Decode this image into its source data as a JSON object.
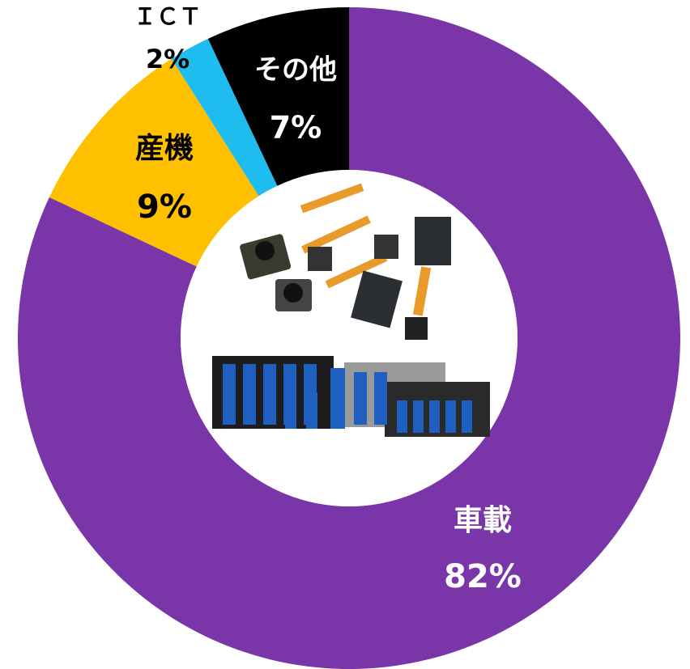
{
  "chart_data": {
    "type": "donut",
    "categories": [
      "車載",
      "産機",
      "ＩＣＴ",
      "その他"
    ],
    "values": [
      82,
      9,
      2,
      7
    ],
    "value_labels": [
      "82%",
      "9%",
      "2%",
      "7%"
    ],
    "colors": [
      "#7a36a8",
      "#ffc000",
      "#1fbcef",
      "#000000"
    ]
  }
}
